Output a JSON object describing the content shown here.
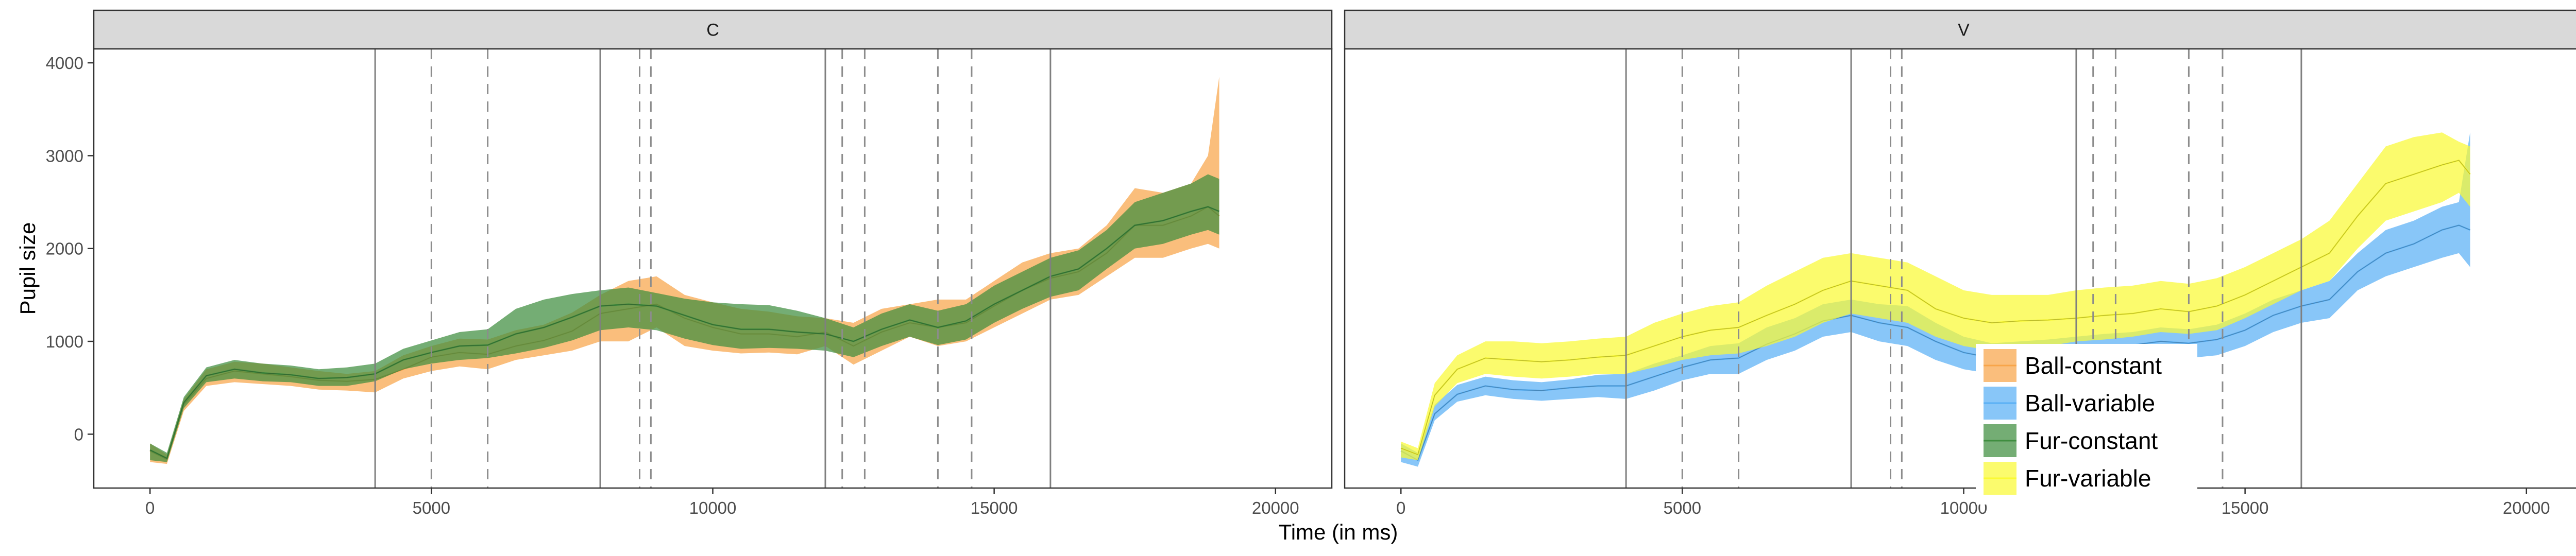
{
  "chart_data": {
    "type": "area",
    "xlabel": "Time (in ms)",
    "ylabel": "Pupil size",
    "xlim": [
      -1000,
      21000
    ],
    "ylim": [
      -580,
      4150
    ],
    "x_ticks": [
      0,
      5000,
      10000,
      15000,
      20000
    ],
    "y_ticks": [
      0,
      1000,
      2000,
      3000,
      4000
    ],
    "grid": false,
    "legend_position": "bottom-right",
    "colors": {
      "Ball-constant": "#f8a54a",
      "Ball-variable": "#5ab0f5",
      "Fur-constant": "#3f8d3f",
      "Fur-variable": "#fafa34"
    },
    "panels": [
      {
        "label": "C",
        "solid_vlines": [
          4000,
          8000,
          12000,
          16000
        ],
        "dashed_vlines": [
          5000,
          6000,
          8700,
          8900,
          12300,
          12700,
          14000,
          14600
        ],
        "series": [
          {
            "name": "Ball-constant",
            "x": [
              0,
              300,
              600,
              1000,
              1500,
              2000,
              2500,
              3000,
              3500,
              4000,
              4500,
              5000,
              5500,
              6000,
              6500,
              7000,
              7500,
              8000,
              8500,
              9000,
              9500,
              10000,
              10500,
              11000,
              11500,
              12000,
              12500,
              13000,
              13500,
              14000,
              14500,
              15000,
              15500,
              16000,
              16500,
              17000,
              17500,
              18000,
              18500,
              18800,
              19000
            ],
            "lower": [
              -300,
              -320,
              250,
              520,
              560,
              540,
              520,
              480,
              470,
              450,
              600,
              680,
              730,
              700,
              800,
              850,
              900,
              1000,
              1000,
              1150,
              950,
              900,
              870,
              880,
              860,
              950,
              750,
              900,
              1050,
              950,
              1000,
              1150,
              1300,
              1450,
              1500,
              1700,
              1900,
              1900,
              2000,
              2050,
              2000
            ],
            "mean": [
              -180,
              -270,
              320,
              600,
              680,
              650,
              620,
              580,
              570,
              590,
              700,
              830,
              880,
              860,
              950,
              1010,
              1110,
              1300,
              1350,
              1400,
              1250,
              1150,
              1080,
              1080,
              1050,
              1100,
              950,
              1100,
              1200,
              1150,
              1200,
              1380,
              1550,
              1680,
              1750,
              1950,
              2250,
              2250,
              2350,
              2450,
              2350
            ],
            "upper": [
              -100,
              -220,
              380,
              700,
              780,
              760,
              720,
              680,
              650,
              680,
              850,
              950,
              1030,
              1020,
              1120,
              1180,
              1310,
              1500,
              1650,
              1700,
              1500,
              1420,
              1350,
              1320,
              1270,
              1250,
              1200,
              1350,
              1400,
              1450,
              1450,
              1650,
              1850,
              1950,
              2000,
              2250,
              2650,
              2600,
              2700,
              3000,
              3850
            ]
          },
          {
            "name": "Fur-constant",
            "x": [
              0,
              300,
              600,
              1000,
              1500,
              2000,
              2500,
              3000,
              3500,
              4000,
              4500,
              5000,
              5500,
              6000,
              6500,
              7000,
              7500,
              8000,
              8500,
              9000,
              9500,
              10000,
              10500,
              11000,
              11500,
              12000,
              12500,
              13000,
              13500,
              14000,
              14500,
              15000,
              15500,
              16000,
              16500,
              17000,
              17500,
              18000,
              18500,
              18800,
              19000
            ],
            "lower": [
              -280,
              -300,
              280,
              560,
              600,
              570,
              560,
              520,
              520,
              570,
              700,
              760,
              800,
              820,
              870,
              930,
              1010,
              1120,
              1150,
              1120,
              1030,
              960,
              920,
              930,
              920,
              900,
              830,
              950,
              1050,
              960,
              1020,
              1200,
              1350,
              1480,
              1550,
              1780,
              2000,
              2050,
              2150,
              2200,
              2150
            ],
            "mean": [
              -170,
              -260,
              340,
              630,
              700,
              660,
              640,
              600,
              610,
              650,
              800,
              880,
              950,
              960,
              1080,
              1150,
              1260,
              1380,
              1400,
              1380,
              1280,
              1180,
              1130,
              1130,
              1100,
              1080,
              1000,
              1130,
              1230,
              1150,
              1220,
              1400,
              1550,
              1700,
              1780,
              2000,
              2250,
              2300,
              2400,
              2450,
              2400
            ],
            "upper": [
              -100,
              -200,
              400,
              720,
              800,
              760,
              740,
              700,
              720,
              760,
              920,
              1010,
              1100,
              1130,
              1350,
              1450,
              1510,
              1550,
              1580,
              1520,
              1460,
              1420,
              1400,
              1390,
              1330,
              1250,
              1150,
              1300,
              1400,
              1330,
              1400,
              1600,
              1750,
              1900,
              1980,
              2200,
              2500,
              2600,
              2700,
              2800,
              2750
            ]
          }
        ]
      },
      {
        "label": "V",
        "solid_vlines": [
          4000,
          8000,
          12000,
          16000
        ],
        "dashed_vlines": [
          5000,
          6000,
          8700,
          8900,
          12300,
          12700,
          14000,
          14600
        ],
        "series": [
          {
            "name": "Ball-variable",
            "x": [
              0,
              300,
              600,
              1000,
              1500,
              2000,
              2500,
              3000,
              3500,
              4000,
              4500,
              5000,
              5500,
              6000,
              6500,
              7000,
              7500,
              8000,
              8500,
              9000,
              9500,
              10000,
              10500,
              11000,
              11500,
              12000,
              12500,
              13000,
              13500,
              14000,
              14500,
              15000,
              15500,
              16000,
              16500,
              17000,
              17500,
              18000,
              18500,
              18800,
              19000
            ],
            "lower": [
              -300,
              -350,
              150,
              350,
              420,
              380,
              360,
              380,
              400,
              380,
              470,
              580,
              650,
              650,
              800,
              900,
              1050,
              1100,
              1000,
              950,
              800,
              700,
              650,
              680,
              700,
              750,
              780,
              800,
              850,
              820,
              850,
              950,
              1100,
              1200,
              1250,
              1550,
              1700,
              1800,
              1900,
              1950,
              1800
            ],
            "mean": [
              -180,
              -280,
              220,
              430,
              520,
              480,
              470,
              500,
              520,
              520,
              620,
              720,
              800,
              820,
              970,
              1080,
              1220,
              1280,
              1200,
              1150,
              1000,
              880,
              820,
              840,
              860,
              900,
              940,
              960,
              1000,
              980,
              1020,
              1120,
              1280,
              1380,
              1450,
              1750,
              1950,
              2050,
              2200,
              2250,
              2200
            ],
            "upper": [
              -100,
              -200,
              320,
              530,
              620,
              580,
              560,
              590,
              640,
              650,
              760,
              850,
              950,
              980,
              1150,
              1250,
              1400,
              1450,
              1400,
              1380,
              1200,
              1050,
              980,
              1000,
              1020,
              1050,
              1080,
              1100,
              1150,
              1130,
              1180,
              1300,
              1450,
              1550,
              1650,
              1950,
              2200,
              2300,
              2450,
              2500,
              3250
            ]
          },
          {
            "name": "Fur-variable",
            "x": [
              0,
              300,
              600,
              1000,
              1500,
              2000,
              2500,
              3000,
              3500,
              4000,
              4500,
              5000,
              5500,
              6000,
              6500,
              7000,
              7500,
              8000,
              8500,
              9000,
              9500,
              10000,
              10500,
              11000,
              11500,
              12000,
              12500,
              13000,
              13500,
              14000,
              14500,
              15000,
              15500,
              16000,
              16500,
              17000,
              17500,
              18000,
              18500,
              18800,
              19000
            ],
            "lower": [
              -250,
              -280,
              300,
              550,
              650,
              620,
              600,
              620,
              650,
              650,
              720,
              800,
              850,
              870,
              950,
              1050,
              1200,
              1300,
              1250,
              1200,
              1050,
              950,
              900,
              930,
              950,
              1000,
              1020,
              1050,
              1100,
              1080,
              1120,
              1250,
              1400,
              1550,
              1650,
              2000,
              2300,
              2400,
              2500,
              2600,
              2450
            ],
            "mean": [
              -150,
              -220,
              420,
              700,
              820,
              800,
              780,
              800,
              830,
              850,
              950,
              1050,
              1120,
              1150,
              1280,
              1400,
              1550,
              1650,
              1600,
              1550,
              1350,
              1250,
              1200,
              1220,
              1230,
              1250,
              1280,
              1300,
              1350,
              1320,
              1380,
              1500,
              1650,
              1800,
              1950,
              2350,
              2700,
              2800,
              2900,
              2950,
              2800
            ],
            "upper": [
              -80,
              -150,
              550,
              850,
              1000,
              1000,
              980,
              1000,
              1030,
              1050,
              1200,
              1300,
              1380,
              1420,
              1600,
              1750,
              1900,
              1950,
              1900,
              1850,
              1700,
              1550,
              1500,
              1500,
              1500,
              1550,
              1580,
              1600,
              1650,
              1620,
              1680,
              1800,
              1950,
              2100,
              2300,
              2700,
              3100,
              3200,
              3250,
              3150,
              3100
            ]
          }
        ]
      }
    ],
    "legend": [
      "Ball-constant",
      "Ball-variable",
      "Fur-constant",
      "Fur-variable"
    ]
  }
}
